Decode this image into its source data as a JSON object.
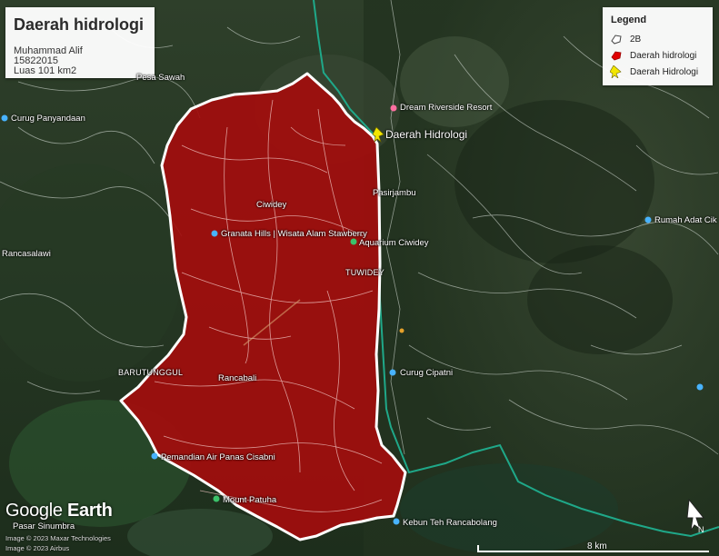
{
  "title_card": {
    "title": "Daerah hidrologi",
    "author": "Muhammad Alif",
    "student_id": "15822015",
    "area": "Luas 101 km2"
  },
  "legend": {
    "heading": "Legend",
    "items": [
      {
        "label": "2B",
        "icon": "outline-polygon-icon"
      },
      {
        "label": "Daerah hidrologi",
        "icon": "red-polygon-icon",
        "color": "#e00000"
      },
      {
        "label": "Daerah Hidrologi",
        "icon": "yellow-pin-icon",
        "color": "#f2e600"
      }
    ]
  },
  "places": {
    "daerah_pin": "Daerah Hidrologi",
    "dream": "Dream Riverside Resort",
    "pasirjambu": "Pasirjambu",
    "ciwidey": "Ciwidey",
    "granata": "Granata Hills | Wisata Alam Stawberry",
    "aquarium": "Aquarium Ciwidey",
    "tuwidey": "TUWIDEY",
    "curug_panyandaan": "Curug Panyandaan",
    "rumah_adat": "Rumah Adat Cik",
    "rancabali": "Rancabali",
    "barutunggul": "BARUTUNGGUL",
    "curug_cipatni": "Curug Cipatni",
    "pemandian": "Pemandian Air Panas Cisabni",
    "mount": "Mount Patuha",
    "kebun": "Kebun Teh Rancabolang",
    "pasar": "Pasar Sinumbra",
    "sawah": "Pesa Sawah",
    "rancasalawi": "Rancasalawi"
  },
  "attribution": {
    "line1": "Image © 2023 Maxar Technologies",
    "line2": "Image © 2023 Airbus",
    "logo_brand": "Google",
    "logo_product": "Earth"
  },
  "scale": {
    "label": "8 km"
  },
  "colors": {
    "polygon_fill": "#a30d0d",
    "polygon_stroke": "#ffffff",
    "boundary_line": "#1fa889",
    "rivers": "#e8efe9",
    "pin": "#f2e600"
  }
}
